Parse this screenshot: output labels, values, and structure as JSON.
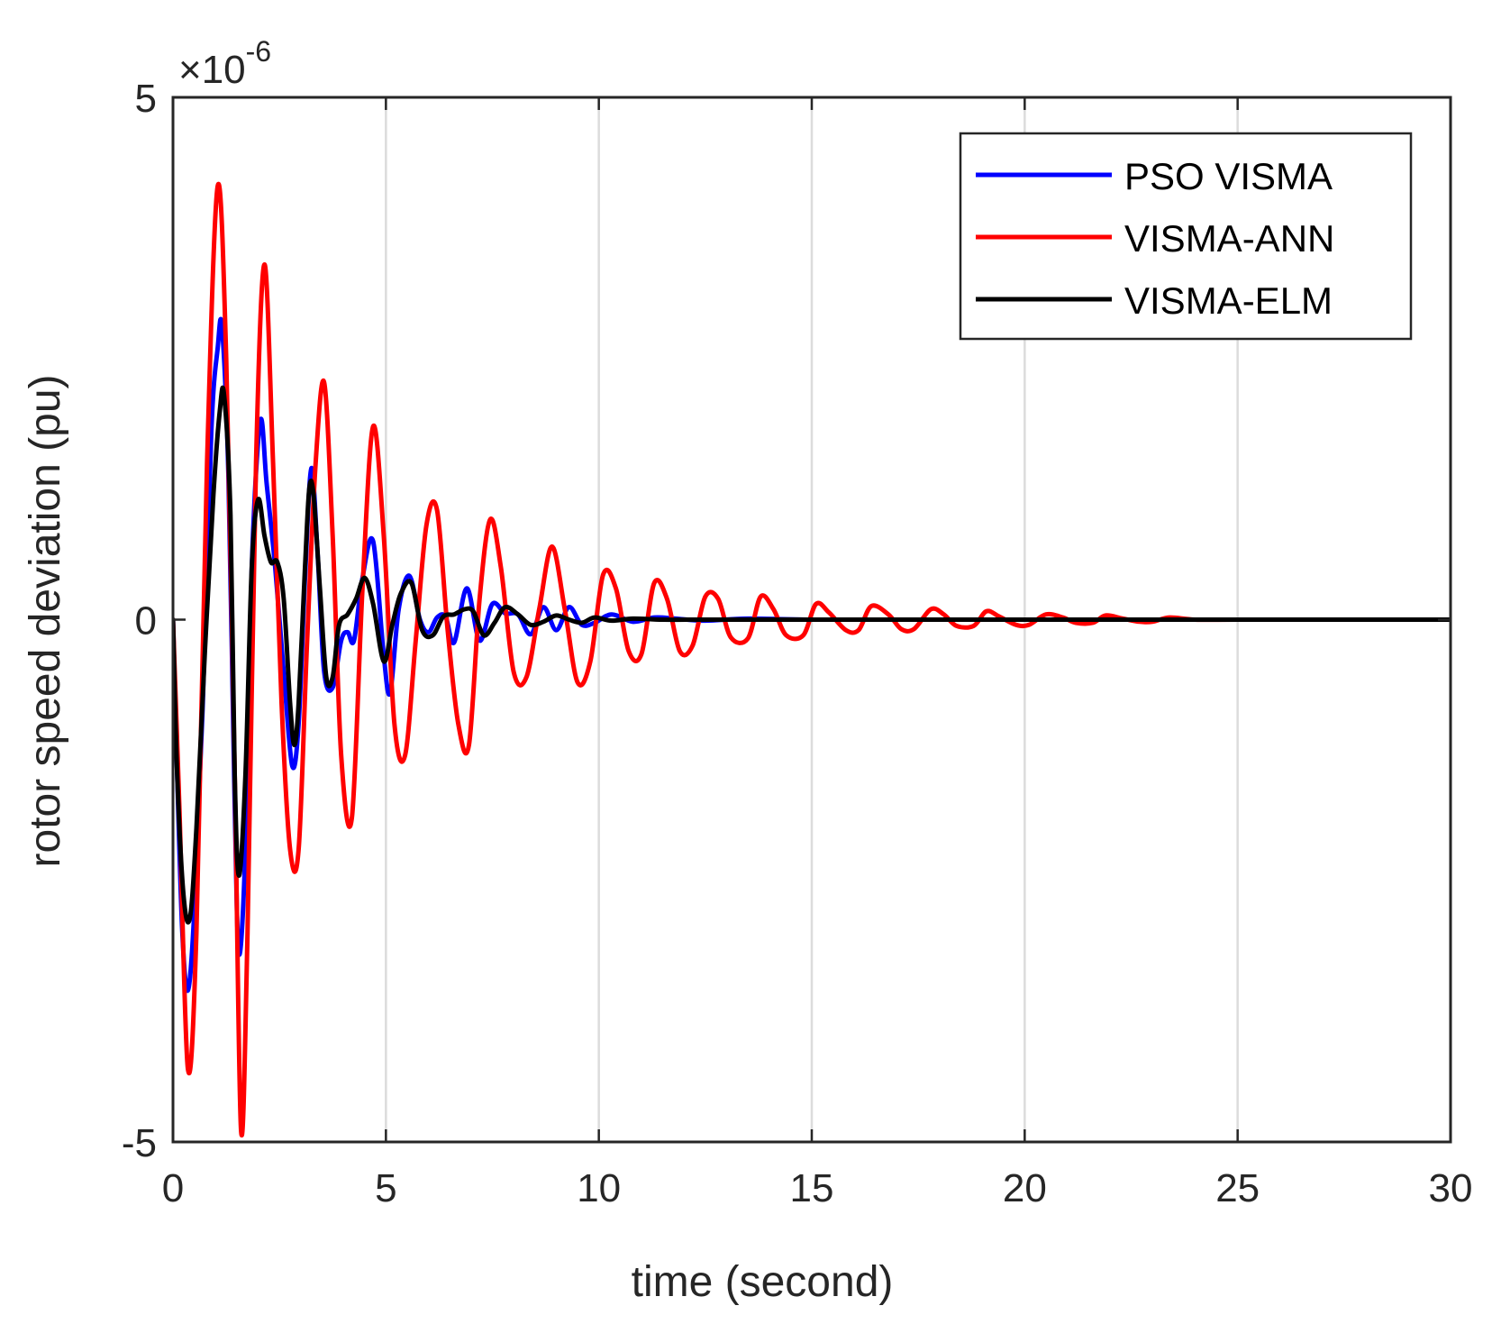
{
  "chart_data": {
    "type": "line",
    "title": "",
    "xlabel": "time (second)",
    "ylabel": "rotor speed deviation (pu)",
    "xlim": [
      0,
      30
    ],
    "ylim": [
      -5,
      5
    ],
    "y_exponent": "×10",
    "y_exponent_power": "-6",
    "x_ticks": [
      "0",
      "5",
      "10",
      "15",
      "20",
      "25",
      "30"
    ],
    "y_ticks": [
      "-5",
      "0",
      "5"
    ],
    "x_grid": true,
    "legend_position": "top-right",
    "series": [
      {
        "name": "PSO VISMA",
        "color": "#0000ff",
        "x": [
          0,
          0.1,
          0.22,
          0.35,
          0.5,
          0.7,
          0.9,
          1.05,
          1.15,
          1.3,
          1.45,
          1.55,
          1.7,
          1.85,
          2.05,
          2.2,
          2.4,
          2.6,
          2.8,
          2.95,
          3.1,
          3.25,
          3.4,
          3.55,
          3.75,
          3.95,
          4.1,
          4.25,
          4.45,
          4.7,
          4.95,
          5.1,
          5.3,
          5.55,
          5.8,
          6.0,
          6.2,
          6.4,
          6.6,
          6.9,
          7.2,
          7.5,
          7.8,
          8.1,
          8.4,
          8.7,
          9.0,
          9.3,
          9.6,
          9.9,
          10.3,
          10.8,
          11.3,
          11.8,
          12.5,
          13.5,
          15,
          18,
          22,
          26,
          30
        ],
        "y": [
          0,
          -1.5,
          -3.0,
          -3.55,
          -2.8,
          -0.8,
          1.8,
          2.6,
          2.8,
          1.4,
          -1.8,
          -3.2,
          -2.2,
          0.5,
          1.9,
          1.3,
          0.5,
          -0.5,
          -1.4,
          -1.0,
          0.4,
          1.45,
          0.6,
          -0.5,
          -0.65,
          -0.2,
          -0.12,
          -0.2,
          0.4,
          0.75,
          -0.35,
          -0.7,
          0.1,
          0.42,
          0.0,
          -0.12,
          0.02,
          0.03,
          -0.22,
          0.3,
          -0.2,
          0.15,
          0.06,
          0.05,
          -0.14,
          0.12,
          -0.1,
          0.12,
          -0.05,
          -0.03,
          0.05,
          -0.02,
          0.02,
          0.01,
          -0.01,
          0.01,
          0.0,
          0.0,
          0.0,
          0.0,
          0.0
        ]
      },
      {
        "name": "VISMA-ANN",
        "color": "#ff0000",
        "x": [
          0,
          0.15,
          0.35,
          0.55,
          0.8,
          1.05,
          1.25,
          1.45,
          1.6,
          1.75,
          1.95,
          2.15,
          2.35,
          2.55,
          2.75,
          2.95,
          3.15,
          3.35,
          3.55,
          3.75,
          3.95,
          4.2,
          4.45,
          4.7,
          4.95,
          5.2,
          5.45,
          5.7,
          5.95,
          6.2,
          6.45,
          6.7,
          6.95,
          7.2,
          7.45,
          7.7,
          8.0,
          8.3,
          8.6,
          8.9,
          9.2,
          9.5,
          9.8,
          10.1,
          10.4,
          10.7,
          11.0,
          11.3,
          11.6,
          11.9,
          12.2,
          12.5,
          12.8,
          13.1,
          13.5,
          13.8,
          14.1,
          14.4,
          14.8,
          15.1,
          15.4,
          15.8,
          16.1,
          16.4,
          16.8,
          17.1,
          17.4,
          17.8,
          18.1,
          18.4,
          18.8,
          19.1,
          19.4,
          19.8,
          20.1,
          20.5,
          20.9,
          21.2,
          21.6,
          21.9,
          22.3,
          22.7,
          23.0,
          23.4,
          24.0,
          25,
          27,
          30
        ],
        "y": [
          0,
          -1.8,
          -4.3,
          -3.0,
          1.5,
          4.15,
          2.5,
          -1.5,
          -4.9,
          -3.0,
          1.5,
          3.4,
          1.5,
          -0.8,
          -2.2,
          -2.2,
          -0.2,
          1.5,
          2.27,
          0.8,
          -1.3,
          -1.9,
          0.3,
          1.85,
          0.8,
          -1.0,
          -1.3,
          -0.2,
          0.9,
          1.05,
          -0.1,
          -1.0,
          -1.2,
          0.2,
          0.96,
          0.5,
          -0.5,
          -0.55,
          0.1,
          0.7,
          0.1,
          -0.6,
          -0.4,
          0.43,
          0.3,
          -0.3,
          -0.33,
          0.35,
          0.2,
          -0.3,
          -0.25,
          0.22,
          0.2,
          -0.17,
          -0.18,
          0.22,
          0.1,
          -0.15,
          -0.15,
          0.15,
          0.07,
          -0.1,
          -0.1,
          0.13,
          0.05,
          -0.09,
          -0.09,
          0.1,
          0.05,
          -0.06,
          -0.06,
          0.08,
          0.03,
          -0.05,
          -0.05,
          0.05,
          0.02,
          -0.03,
          -0.03,
          0.04,
          0.01,
          -0.02,
          -0.02,
          0.02,
          0.0,
          0.0,
          0.0,
          0.0
        ]
      },
      {
        "name": "VISMA-ELM",
        "color": "#000000",
        "x": [
          0,
          0.1,
          0.25,
          0.4,
          0.55,
          0.75,
          0.95,
          1.1,
          1.2,
          1.35,
          1.45,
          1.55,
          1.7,
          1.85,
          2.0,
          2.15,
          2.3,
          2.45,
          2.6,
          2.75,
          2.85,
          2.95,
          3.1,
          3.2,
          3.3,
          3.45,
          3.6,
          3.75,
          3.9,
          4.1,
          4.3,
          4.5,
          4.7,
          4.95,
          5.15,
          5.35,
          5.6,
          5.85,
          6.1,
          6.35,
          6.6,
          6.85,
          7.05,
          7.3,
          7.55,
          7.8,
          8.1,
          8.4,
          8.7,
          9.0,
          9.3,
          9.6,
          9.9,
          10.3,
          10.8,
          11.5,
          12.5,
          14,
          16,
          19,
          23,
          27,
          30
        ],
        "y": [
          0,
          -1.5,
          -2.65,
          -2.85,
          -2.0,
          -0.3,
          1.2,
          2.0,
          2.15,
          1.0,
          -1.5,
          -2.45,
          -1.5,
          0.5,
          1.15,
          0.8,
          0.55,
          0.55,
          0.2,
          -0.8,
          -1.2,
          -0.8,
          0.5,
          1.25,
          1.2,
          0.3,
          -0.55,
          -0.55,
          -0.05,
          0.05,
          0.2,
          0.4,
          0.15,
          -0.4,
          -0.05,
          0.25,
          0.35,
          -0.1,
          -0.15,
          0.03,
          0.05,
          0.1,
          0.08,
          -0.15,
          -0.03,
          0.12,
          0.05,
          -0.05,
          -0.02,
          0.04,
          0.0,
          -0.03,
          0.02,
          -0.01,
          0.01,
          0.0,
          0.0,
          0.0,
          0.0,
          0.0,
          0.0,
          0.0,
          0.0
        ]
      }
    ]
  }
}
